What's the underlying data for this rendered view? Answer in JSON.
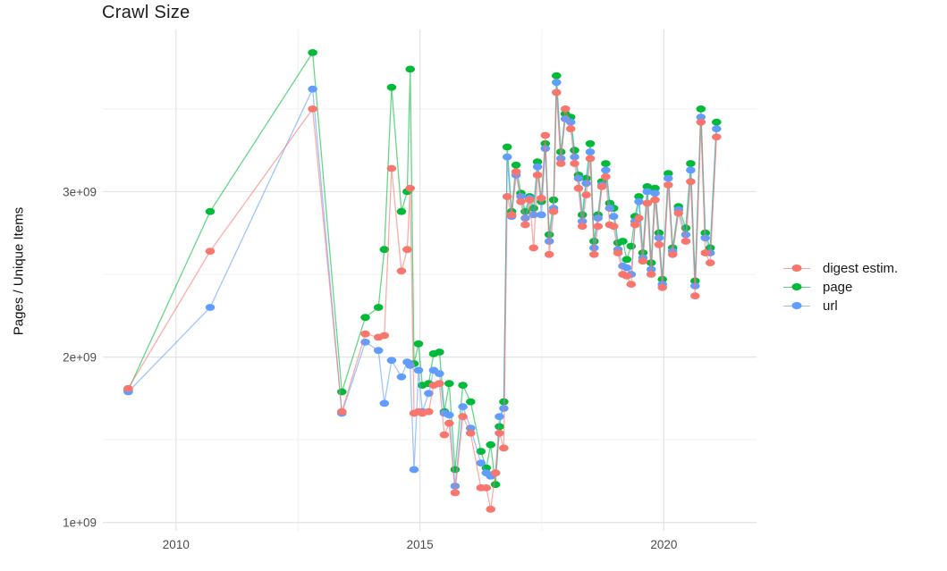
{
  "title": "Crawl Size",
  "axes": {
    "y_label": "Pages / Unique Items",
    "y_ticks": [
      {
        "label": "1e+09",
        "value": 1.0
      },
      {
        "label": "2e+09",
        "value": 2.0
      },
      {
        "label": "3e+09",
        "value": 3.0
      }
    ],
    "y_minor": [
      1.5,
      2.5,
      3.5
    ],
    "x_ticks": [
      {
        "label": "2010",
        "value": 2010
      },
      {
        "label": "2015",
        "value": 2015
      },
      {
        "label": "2020",
        "value": 2020
      }
    ],
    "x_minor": [
      2012.5,
      2017.5
    ],
    "xlim": [
      2008.5,
      2021.9
    ],
    "ylim": [
      0.95,
      3.98
    ]
  },
  "colors": {
    "digest": "#F8766D",
    "page": "#00BA38",
    "url": "#619CFF",
    "grid_major": "#e3e3e3",
    "grid_minor": "#f0f0f0",
    "axis_text": "#4d4d4d"
  },
  "legend": [
    {
      "id": "digest",
      "label": "digest estim.",
      "color": "#F8766D"
    },
    {
      "id": "page",
      "label": "page",
      "color": "#00BA38"
    },
    {
      "id": "url",
      "label": "url",
      "color": "#619CFF"
    }
  ],
  "chart_data": {
    "type": "line",
    "title": "Crawl Size",
    "xlabel": "",
    "ylabel": "Pages / Unique Items",
    "values_unit": "1e9 (billions of pages / unique items)",
    "x_unit": "year (decimal, one point per crawl)",
    "xlim": [
      2008.5,
      2021.9
    ],
    "ylim_e9": [
      0.95,
      3.98
    ],
    "legend_position": "right",
    "grid": true,
    "x": [
      2009.02,
      2010.7,
      2012.8,
      2013.4,
      2013.88,
      2014.15,
      2014.27,
      2014.42,
      2014.62,
      2014.74,
      2014.8,
      2014.88,
      2014.97,
      2015.05,
      2015.18,
      2015.28,
      2015.4,
      2015.5,
      2015.6,
      2015.72,
      2015.88,
      2016.04,
      2016.25,
      2016.36,
      2016.45,
      2016.55,
      2016.63,
      2016.72,
      2016.79,
      2016.88,
      2016.97,
      2017.07,
      2017.16,
      2017.25,
      2017.33,
      2017.41,
      2017.49,
      2017.57,
      2017.65,
      2017.74,
      2017.8,
      2017.89,
      2017.98,
      2018.09,
      2018.17,
      2018.25,
      2018.33,
      2018.41,
      2018.49,
      2018.57,
      2018.65,
      2018.73,
      2018.81,
      2018.89,
      2018.97,
      2019.06,
      2019.16,
      2019.24,
      2019.33,
      2019.41,
      2019.49,
      2019.57,
      2019.66,
      2019.74,
      2019.82,
      2019.9,
      2019.97,
      2020.09,
      2020.18,
      2020.3,
      2020.45,
      2020.55,
      2020.64,
      2020.76,
      2020.85,
      2020.95,
      2021.08
    ],
    "series": [
      {
        "name": "digest estim.",
        "color": "#F8766D",
        "values": [
          1.81,
          2.64,
          3.5,
          1.67,
          2.14,
          2.12,
          2.13,
          3.14,
          2.52,
          2.65,
          3.02,
          1.66,
          1.67,
          1.66,
          1.67,
          1.83,
          1.84,
          1.53,
          1.6,
          1.18,
          1.64,
          1.54,
          1.21,
          1.21,
          1.08,
          1.3,
          1.54,
          1.45,
          2.97,
          2.86,
          3.12,
          2.94,
          2.8,
          2.95,
          2.66,
          3.1,
          2.96,
          3.34,
          2.62,
          2.88,
          3.6,
          3.17,
          3.5,
          3.38,
          3.17,
          3.02,
          2.79,
          2.98,
          3.2,
          2.62,
          2.79,
          3.03,
          3.09,
          2.8,
          2.79,
          2.63,
          2.5,
          2.49,
          2.44,
          2.8,
          2.84,
          2.58,
          2.93,
          2.5,
          2.95,
          2.68,
          2.42,
          3.04,
          2.62,
          2.87,
          2.7,
          3.06,
          2.37,
          3.42,
          2.63,
          2.57,
          3.33
        ]
      },
      {
        "name": "page",
        "color": "#00BA38",
        "values": [
          1.8,
          2.88,
          3.84,
          1.79,
          2.24,
          2.3,
          2.65,
          3.63,
          2.88,
          3.0,
          3.74,
          1.96,
          2.08,
          1.83,
          1.84,
          2.02,
          2.03,
          1.67,
          1.84,
          1.32,
          1.83,
          1.73,
          1.43,
          1.33,
          1.47,
          1.23,
          1.58,
          1.73,
          3.27,
          2.88,
          3.16,
          2.99,
          2.88,
          2.97,
          2.9,
          3.18,
          2.94,
          3.29,
          2.74,
          2.95,
          3.7,
          3.24,
          3.47,
          3.45,
          3.25,
          3.1,
          2.86,
          3.08,
          3.29,
          2.7,
          2.86,
          3.06,
          3.17,
          2.93,
          2.9,
          2.69,
          2.7,
          2.59,
          2.67,
          2.85,
          2.97,
          2.63,
          3.03,
          2.57,
          3.02,
          2.75,
          2.47,
          3.11,
          2.66,
          2.91,
          2.78,
          3.17,
          2.46,
          3.5,
          2.75,
          2.66,
          3.42
        ]
      },
      {
        "name": "url",
        "color": "#619CFF",
        "values": [
          1.79,
          2.3,
          3.62,
          1.66,
          2.09,
          2.04,
          1.72,
          1.98,
          1.88,
          1.97,
          1.95,
          1.32,
          1.92,
          1.67,
          1.78,
          1.92,
          1.9,
          1.66,
          1.65,
          1.22,
          1.7,
          1.57,
          1.36,
          1.3,
          1.28,
          1.3,
          1.64,
          1.69,
          3.21,
          2.85,
          3.1,
          2.97,
          2.84,
          2.96,
          2.86,
          3.15,
          2.86,
          3.26,
          2.7,
          2.9,
          3.66,
          3.2,
          3.44,
          3.42,
          3.21,
          3.08,
          2.82,
          3.05,
          3.24,
          2.66,
          2.84,
          3.04,
          3.13,
          2.9,
          2.85,
          2.65,
          2.55,
          2.54,
          2.5,
          2.82,
          2.94,
          2.6,
          3.0,
          2.53,
          2.99,
          2.72,
          2.44,
          3.08,
          2.64,
          2.89,
          2.74,
          3.13,
          2.43,
          3.45,
          2.72,
          2.63,
          3.38
        ]
      }
    ],
    "draw_order": [
      "page",
      "url",
      "digest estim."
    ]
  }
}
